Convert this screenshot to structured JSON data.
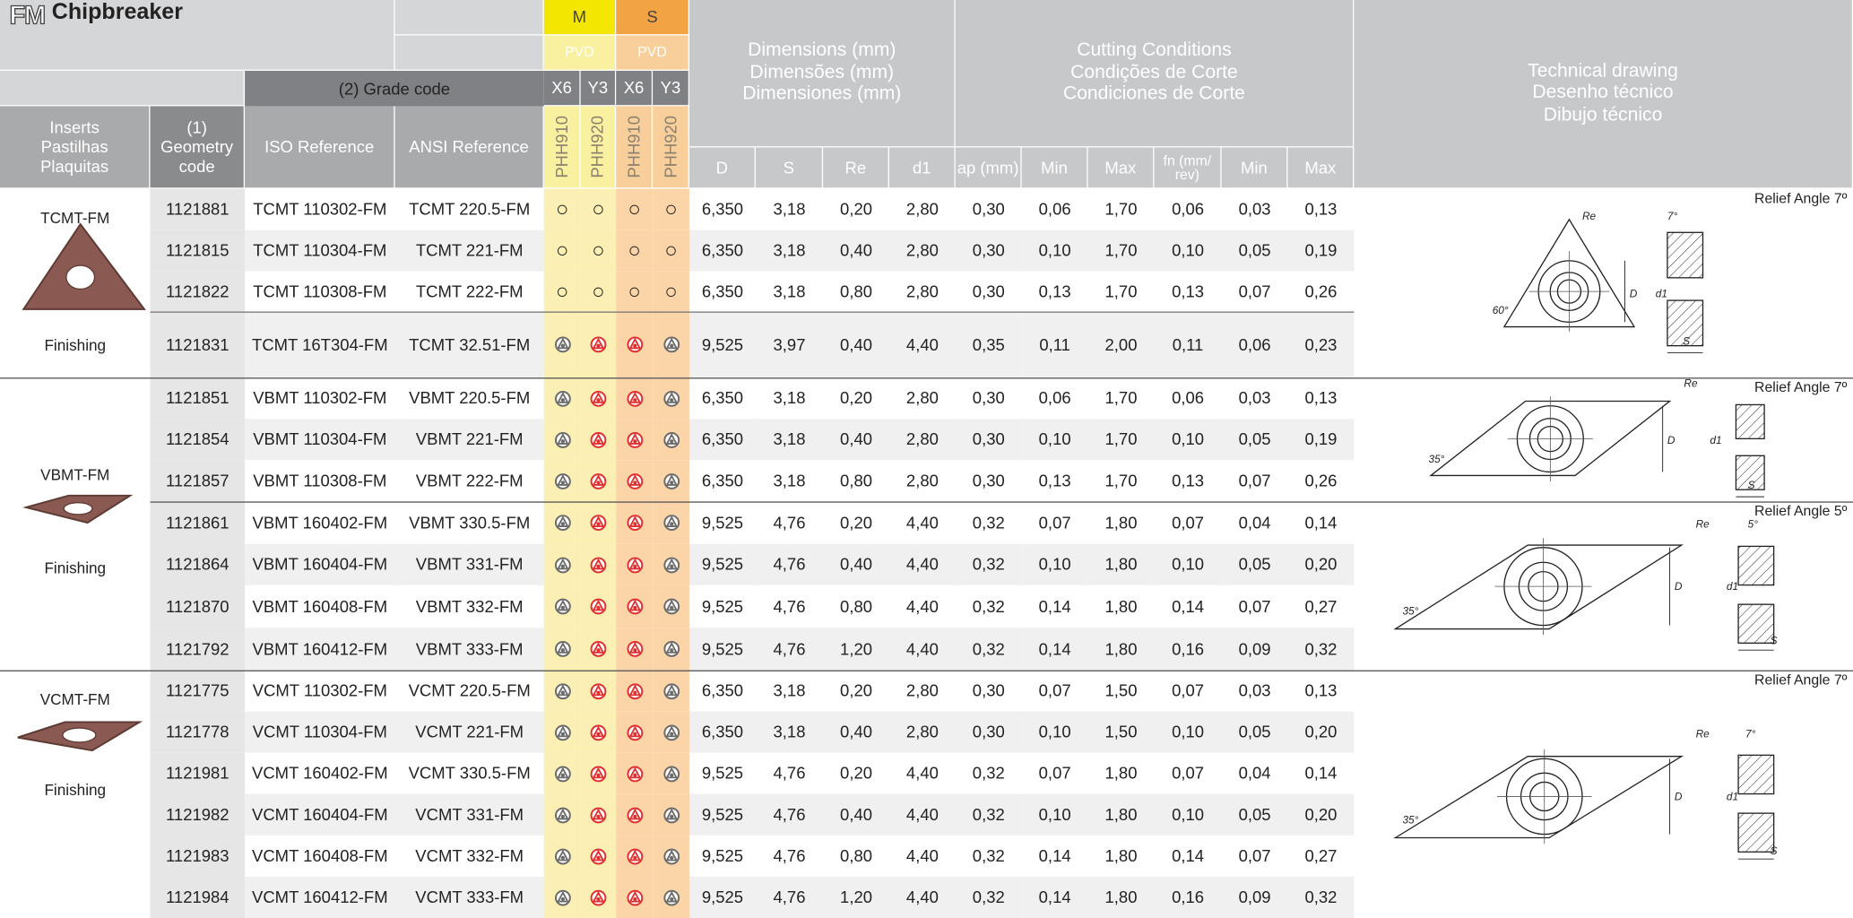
{
  "header": {
    "series_icon": "FM",
    "title": "Chipbreaker",
    "materials": [
      {
        "label": "M",
        "coating": "PVD",
        "color": "#f3e600",
        "light": "#f9f0a0",
        "grades": [
          "X6",
          "Y3"
        ],
        "grade_names": [
          "PHH910",
          "PHH920"
        ]
      },
      {
        "label": "S",
        "coating": "PVD",
        "color": "#f2a444",
        "light": "#f8cf9a",
        "grades": [
          "X6",
          "Y3"
        ],
        "grade_names": [
          "PHH910",
          "PHH920"
        ]
      }
    ],
    "grade_code": "(2) Grade code",
    "inserts": [
      "Inserts",
      "Pastilhas",
      "Plaquitas"
    ],
    "geometry": [
      "(1)",
      "Geometry",
      "code"
    ],
    "iso": "ISO Reference",
    "ansi": "ANSI Reference",
    "dimensions": [
      "Dimensions (mm)",
      "Dimensões (mm)",
      "Dimensiones (mm)"
    ],
    "dim_cols": [
      "D",
      "S",
      "Re",
      "d1"
    ],
    "cutting": [
      "Cutting Conditions",
      "Condições de Corte",
      "Condiciones de Corte"
    ],
    "cut_cols": [
      "ap (mm)",
      "Min",
      "Max",
      "fn (mm/ rev)",
      "Min",
      "Max"
    ],
    "drawing": [
      "Technical drawing",
      "Desenho técnico",
      "Dibujo técnico"
    ]
  },
  "groups": [
    {
      "name": "TCMT-FM",
      "use": "Finishing",
      "sections": [
        {
          "drawing": {
            "relief": "Relief Angle 7º",
            "re": "Re",
            "clearance": "7°",
            "d": "D",
            "d1": "d1",
            "s": "S",
            "angle": "60°"
          },
          "rows": [
            {
              "code": "1121881",
              "iso": "TCMT 110302-FM",
              "ansi": "TCMT 220.5-FM",
              "grades": [
                "○",
                "○",
                "○",
                "○"
              ],
              "values": [
                "6,350",
                "3,18",
                "0,20",
                "2,80",
                "0,30",
                "0,06",
                "1,70",
                "0,06",
                "0,03",
                "0,13"
              ]
            },
            {
              "code": "1121815",
              "iso": "TCMT 110304-FM",
              "ansi": "TCMT 221-FM",
              "grades": [
                "○",
                "○",
                "○",
                "○"
              ],
              "values": [
                "6,350",
                "3,18",
                "0,40",
                "2,80",
                "0,30",
                "0,10",
                "1,70",
                "0,10",
                "0,05",
                "0,19"
              ]
            },
            {
              "code": "1121822",
              "iso": "TCMT 110308-FM",
              "ansi": "TCMT 222-FM",
              "grades": [
                "○",
                "○",
                "○",
                "○"
              ],
              "values": [
                "6,350",
                "3,18",
                "0,80",
                "2,80",
                "0,30",
                "0,13",
                "1,70",
                "0,13",
                "0,07",
                "0,26"
              ]
            },
            {
              "code": "1121831",
              "iso": "TCMT 16T304-FM",
              "ansi": "TCMT 32.51-FM",
              "grades": [
                "#6b6b6b",
                "#e0302f",
                "#e0302f",
                "#6b6b6b"
              ],
              "values": [
                "9,525",
                "3,97",
                "0,40",
                "4,40",
                "0,35",
                "0,11",
                "2,00",
                "0,11",
                "0,06",
                "0,23"
              ]
            }
          ]
        }
      ]
    },
    {
      "name": "VBMT-FM",
      "use": "Finishing",
      "sections": [
        {
          "drawing": {
            "relief": "Relief Angle 7º",
            "re": "Re",
            "d": "D",
            "d1": "d1",
            "s": "S",
            "angle": "35°"
          },
          "rows": [
            {
              "code": "1121851",
              "iso": "VBMT 110302-FM",
              "ansi": "VBMT 220.5-FM",
              "grades": [
                "#6b6b6b",
                "#e0302f",
                "#e0302f",
                "#6b6b6b"
              ],
              "values": [
                "6,350",
                "3,18",
                "0,20",
                "2,80",
                "0,30",
                "0,06",
                "1,70",
                "0,06",
                "0,03",
                "0,13"
              ]
            },
            {
              "code": "1121854",
              "iso": "VBMT 110304-FM",
              "ansi": "VBMT 221-FM",
              "grades": [
                "#6b6b6b",
                "#e0302f",
                "#e0302f",
                "#6b6b6b"
              ],
              "values": [
                "6,350",
                "3,18",
                "0,40",
                "2,80",
                "0,30",
                "0,10",
                "1,70",
                "0,10",
                "0,05",
                "0,19"
              ]
            },
            {
              "code": "1121857",
              "iso": "VBMT 110308-FM",
              "ansi": "VBMT 222-FM",
              "grades": [
                "#6b6b6b",
                "#e0302f",
                "#e0302f",
                "#6b6b6b"
              ],
              "values": [
                "6,350",
                "3,18",
                "0,80",
                "2,80",
                "0,30",
                "0,13",
                "1,70",
                "0,13",
                "0,07",
                "0,26"
              ]
            }
          ]
        },
        {
          "drawing": {
            "relief": "Relief Angle 5º",
            "re": "Re",
            "clearance": "5°",
            "d": "D",
            "d1": "d1",
            "s": "S",
            "angle": "35°"
          },
          "rows": [
            {
              "code": "1121861",
              "iso": "VBMT 160402-FM",
              "ansi": "VBMT 330.5-FM",
              "grades": [
                "#6b6b6b",
                "#e0302f",
                "#e0302f",
                "#6b6b6b"
              ],
              "values": [
                "9,525",
                "4,76",
                "0,20",
                "4,40",
                "0,32",
                "0,07",
                "1,80",
                "0,07",
                "0,04",
                "0,14"
              ]
            },
            {
              "code": "1121864",
              "iso": "VBMT 160404-FM",
              "ansi": "VBMT 331-FM",
              "grades": [
                "#6b6b6b",
                "#e0302f",
                "#e0302f",
                "#6b6b6b"
              ],
              "values": [
                "9,525",
                "4,76",
                "0,40",
                "4,40",
                "0,32",
                "0,10",
                "1,80",
                "0,10",
                "0,05",
                "0,20"
              ]
            },
            {
              "code": "1121870",
              "iso": "VBMT 160408-FM",
              "ansi": "VBMT 332-FM",
              "grades": [
                "#6b6b6b",
                "#e0302f",
                "#e0302f",
                "#6b6b6b"
              ],
              "values": [
                "9,525",
                "4,76",
                "0,80",
                "4,40",
                "0,32",
                "0,14",
                "1,80",
                "0,14",
                "0,07",
                "0,27"
              ]
            },
            {
              "code": "1121792",
              "iso": "VBMT 160412-FM",
              "ansi": "VBMT 333-FM",
              "grades": [
                "#6b6b6b",
                "#e0302f",
                "#e0302f",
                "#6b6b6b"
              ],
              "values": [
                "9,525",
                "4,76",
                "1,20",
                "4,40",
                "0,32",
                "0,14",
                "1,80",
                "0,16",
                "0,09",
                "0,32"
              ]
            }
          ]
        }
      ]
    },
    {
      "name": "VCMT-FM",
      "use": "Finishing",
      "sections": [
        {
          "drawing": {
            "relief": "Relief Angle 7º",
            "re": "Re",
            "clearance": "7°",
            "d": "D",
            "d1": "d1",
            "s": "S",
            "angle": "35°"
          },
          "rows": [
            {
              "code": "1121775",
              "iso": "VCMT 110302-FM",
              "ansi": "VCMT 220.5-FM",
              "grades": [
                "#6b6b6b",
                "#e0302f",
                "#e0302f",
                "#6b6b6b"
              ],
              "values": [
                "6,350",
                "3,18",
                "0,20",
                "2,80",
                "0,30",
                "0,07",
                "1,50",
                "0,07",
                "0,03",
                "0,13"
              ]
            },
            {
              "code": "1121778",
              "iso": "VCMT 110304-FM",
              "ansi": "VCMT 221-FM",
              "grades": [
                "#6b6b6b",
                "#e0302f",
                "#e0302f",
                "#6b6b6b"
              ],
              "values": [
                "6,350",
                "3,18",
                "0,40",
                "2,80",
                "0,30",
                "0,10",
                "1,50",
                "0,10",
                "0,05",
                "0,20"
              ]
            },
            {
              "code": "1121981",
              "iso": "VCMT 160402-FM",
              "ansi": "VCMT 330.5-FM",
              "grades": [
                "#6b6b6b",
                "#e0302f",
                "#e0302f",
                "#6b6b6b"
              ],
              "values": [
                "9,525",
                "4,76",
                "0,20",
                "4,40",
                "0,32",
                "0,07",
                "1,80",
                "0,07",
                "0,04",
                "0,14"
              ]
            },
            {
              "code": "1121982",
              "iso": "VCMT 160404-FM",
              "ansi": "VCMT 331-FM",
              "grades": [
                "#6b6b6b",
                "#e0302f",
                "#e0302f",
                "#6b6b6b"
              ],
              "values": [
                "9,525",
                "4,76",
                "0,40",
                "4,40",
                "0,32",
                "0,10",
                "1,80",
                "0,10",
                "0,05",
                "0,20"
              ]
            },
            {
              "code": "1121983",
              "iso": "VCMT 160408-FM",
              "ansi": "VCMT 332-FM",
              "grades": [
                "#6b6b6b",
                "#e0302f",
                "#e0302f",
                "#6b6b6b"
              ],
              "values": [
                "9,525",
                "4,76",
                "0,80",
                "4,40",
                "0,32",
                "0,14",
                "1,80",
                "0,14",
                "0,07",
                "0,27"
              ]
            },
            {
              "code": "1121984",
              "iso": "VCMT 160412-FM",
              "ansi": "VCMT 333-FM",
              "grades": [
                "#6b6b6b",
                "#e0302f",
                "#e0302f",
                "#6b6b6b"
              ],
              "values": [
                "9,525",
                "4,76",
                "1,20",
                "4,40",
                "0,32",
                "0,14",
                "1,80",
                "0,16",
                "0,09",
                "0,32"
              ]
            }
          ]
        }
      ]
    }
  ]
}
